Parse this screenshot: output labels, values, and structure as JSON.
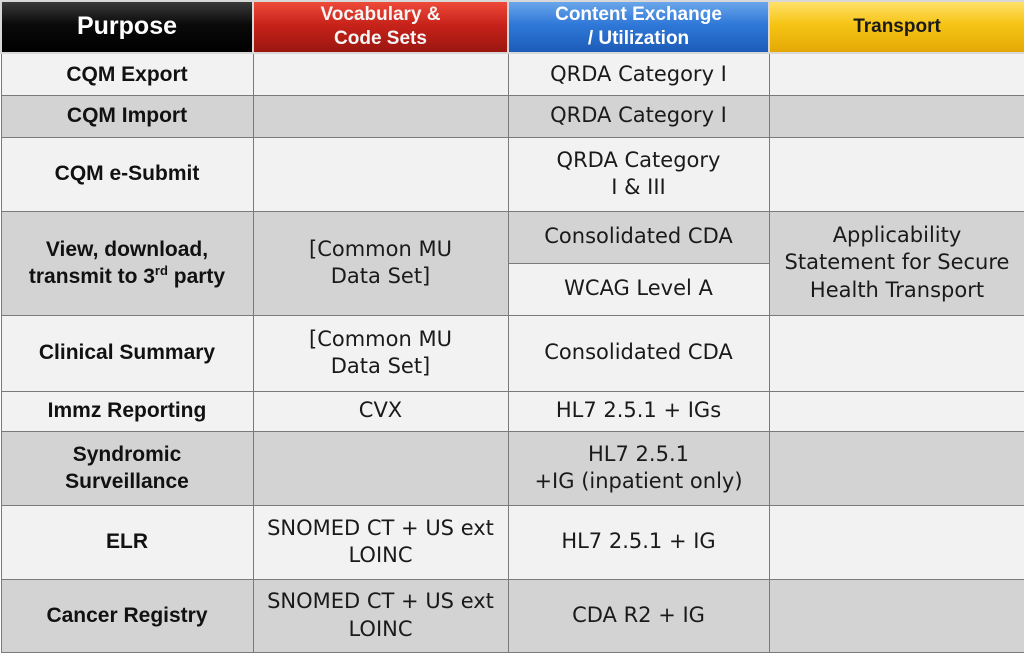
{
  "headers": {
    "purpose": "Purpose",
    "vocab_line1": "Vocabulary &",
    "vocab_line2": "Code Sets",
    "content_line1": "Content Exchange",
    "content_line2": "/ Utilization",
    "transport": "Transport"
  },
  "header_colors": {
    "purpose": "#000000",
    "vocab": "#c8231a",
    "content": "#2f78d8",
    "transport": "#f6c414"
  },
  "rows": {
    "cqm_export": {
      "purpose": "CQM Export",
      "vocab": "",
      "content": "QRDA Category I",
      "transport": ""
    },
    "cqm_import": {
      "purpose": "CQM Import",
      "vocab": "",
      "content": "QRDA Category I",
      "transport": ""
    },
    "cqm_esubmit": {
      "purpose": "CQM e-Submit",
      "vocab": "",
      "content_line1": "QRDA Category",
      "content_line2": "I & III",
      "transport": ""
    },
    "vdt": {
      "purpose_line1": "View, download,",
      "purpose_line2_pre": "transmit to 3",
      "purpose_line2_sup": "rd",
      "purpose_line2_post": " party",
      "vocab_line1": "[Common MU",
      "vocab_line2": "Data Set]",
      "content_a": "Consolidated CDA",
      "content_b": "WCAG Level A",
      "transport_line1": "Applicability",
      "transport_line2": "Statement for Secure",
      "transport_line3": "Health Transport"
    },
    "clinical_summary": {
      "purpose": "Clinical Summary",
      "vocab_line1": "[Common MU",
      "vocab_line2": "Data Set]",
      "content": "Consolidated CDA",
      "transport": ""
    },
    "immz": {
      "purpose": "Immz Reporting",
      "vocab": "CVX",
      "content": "HL7 2.5.1 + IGs",
      "transport": ""
    },
    "syndromic": {
      "purpose_line1": "Syndromic",
      "purpose_line2": "Surveillance",
      "vocab": "",
      "content_line1": "HL7 2.5.1",
      "content_line2": "+IG (inpatient only)",
      "transport": ""
    },
    "elr": {
      "purpose": "ELR",
      "vocab_line1": "SNOMED CT + US ext",
      "vocab_line2": "LOINC",
      "content": "HL7 2.5.1 + IG",
      "transport": ""
    },
    "cancer": {
      "purpose": "Cancer Registry",
      "vocab_line1": "SNOMED CT + US ext",
      "vocab_line2": "LOINC",
      "content": "CDA R2 + IG",
      "transport": ""
    }
  }
}
